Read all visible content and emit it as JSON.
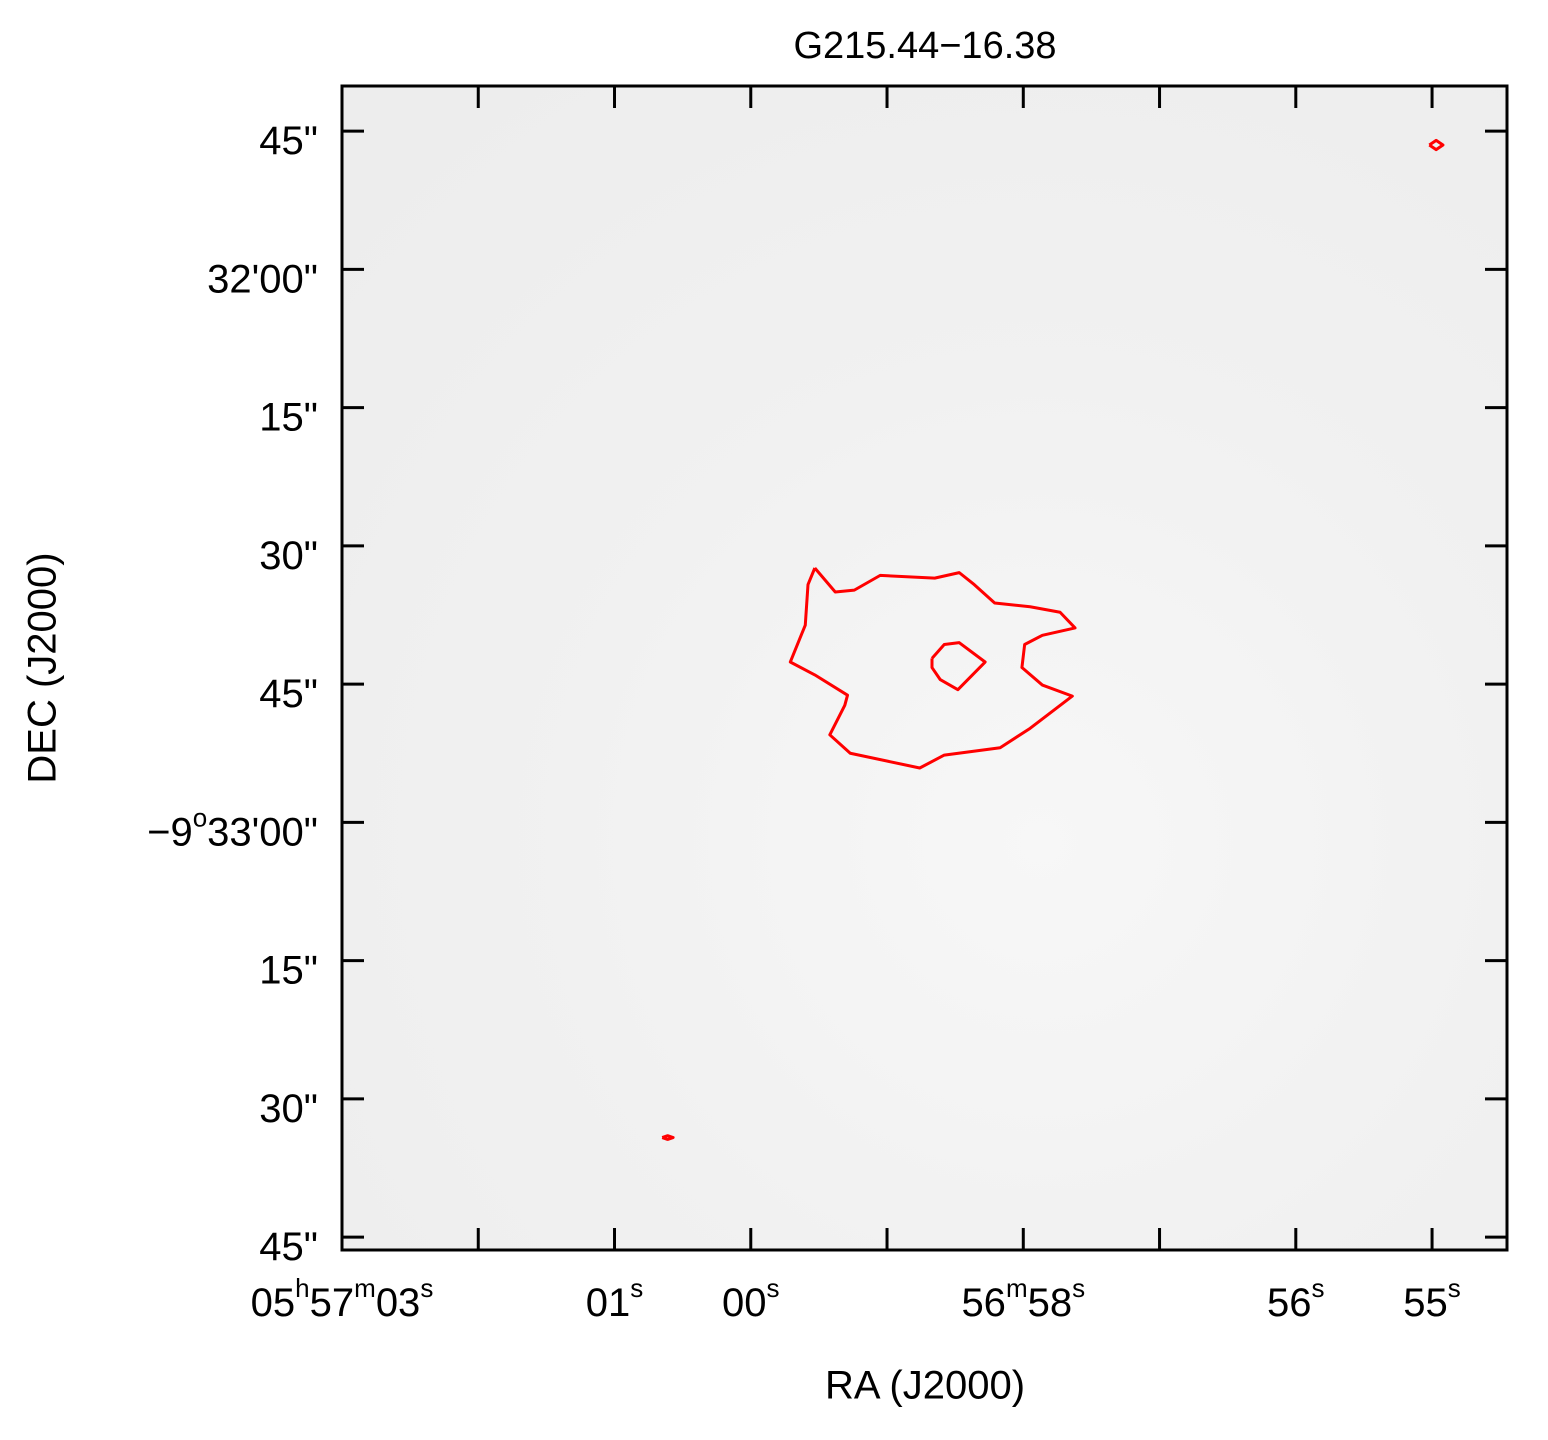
{
  "chart_data": {
    "type": "contour",
    "title": "G215.44−16.38",
    "xlabel": "RA (J2000)",
    "ylabel": "DEC (J2000)",
    "xlim": [
      63.0,
      54.45
    ],
    "ylim": [
      2026.4,
      1900.1
    ],
    "xticks": [
      {
        "value": 63,
        "label": [
          {
            "t": "05"
          },
          {
            "t": "h",
            "sup": true
          },
          {
            "t": "57"
          },
          {
            "t": "m",
            "sup": true
          },
          {
            "t": "03"
          },
          {
            "t": "s",
            "sup": true
          }
        ]
      },
      {
        "value": 62,
        "label": null
      },
      {
        "value": 61,
        "label": [
          {
            "t": "01"
          },
          {
            "t": "s",
            "sup": true
          }
        ]
      },
      {
        "value": 60,
        "label": [
          {
            "t": "00"
          },
          {
            "t": "s",
            "sup": true
          }
        ]
      },
      {
        "value": 59,
        "label": null
      },
      {
        "value": 58,
        "label": [
          {
            "t": "56"
          },
          {
            "t": "m",
            "sup": true
          },
          {
            "t": "58"
          },
          {
            "t": "s",
            "sup": true
          }
        ]
      },
      {
        "value": 57,
        "label": null
      },
      {
        "value": 56,
        "label": [
          {
            "t": "56"
          },
          {
            "t": "s",
            "sup": true
          }
        ]
      },
      {
        "value": 55,
        "label": [
          {
            "t": "55"
          },
          {
            "t": "s",
            "sup": true
          }
        ]
      }
    ],
    "yticks": [
      {
        "value": 1905,
        "label": [
          {
            "t": "45\""
          }
        ]
      },
      {
        "value": 1920,
        "label": [
          {
            "t": "32'00\""
          }
        ]
      },
      {
        "value": 1935,
        "label": [
          {
            "t": "15\""
          }
        ]
      },
      {
        "value": 1950,
        "label": [
          {
            "t": "30\""
          }
        ]
      },
      {
        "value": 1965,
        "label": [
          {
            "t": "45\""
          }
        ]
      },
      {
        "value": 1980,
        "label": [
          {
            "t": "−9"
          },
          {
            "t": "o",
            "sup": true
          },
          {
            "t": "33'00\""
          }
        ]
      },
      {
        "value": 1995,
        "label": [
          {
            "t": "15\""
          }
        ]
      },
      {
        "value": 2010,
        "label": [
          {
            "t": "30\""
          }
        ]
      },
      {
        "value": 2025,
        "label": [
          {
            "t": "45\""
          }
        ]
      }
    ],
    "contour_color": "#ff0000",
    "contours": [
      {
        "x": [
          59.53,
          59.58,
          59.6,
          59.71,
          59.53,
          59.29,
          59.31,
          59.42,
          59.27,
          58.76,
          58.58,
          58.17,
          57.95,
          57.64,
          57.86,
          58.01,
          57.99,
          57.86,
          57.62,
          57.73,
          57.95,
          58.21,
          58.36,
          58.47,
          58.65,
          59.05,
          59.24,
          59.38,
          59.53
        ],
        "y": [
          1952.4,
          1954.2,
          1958.6,
          1962.6,
          1964.0,
          1966.2,
          1967.3,
          1970.5,
          1972.5,
          1974.1,
          1972.7,
          1971.9,
          1969.8,
          1966.3,
          1965.1,
          1963.2,
          1960.7,
          1959.7,
          1958.9,
          1957.2,
          1956.6,
          1956.2,
          1954.2,
          1952.9,
          1953.5,
          1953.2,
          1954.8,
          1955.0,
          1952.4
        ]
      },
      {
        "x": [
          58.67,
          58.58,
          58.47,
          58.28,
          58.48,
          58.61,
          58.67,
          58.67
        ],
        "y": [
          1962.2,
          1960.7,
          1960.5,
          1962.6,
          1965.6,
          1964.5,
          1963.2,
          1962.2
        ]
      },
      {
        "x": [
          55.02,
          54.97,
          54.92,
          54.97,
          55.02
        ],
        "y": [
          1906.5,
          1906.0,
          1906.5,
          1907.0,
          1906.5
        ]
      },
      {
        "x": [
          60.65,
          60.61,
          60.57,
          60.61,
          60.65
        ],
        "y": [
          2014.2,
          2014.0,
          2014.2,
          2014.4,
          2014.2
        ]
      }
    ]
  }
}
